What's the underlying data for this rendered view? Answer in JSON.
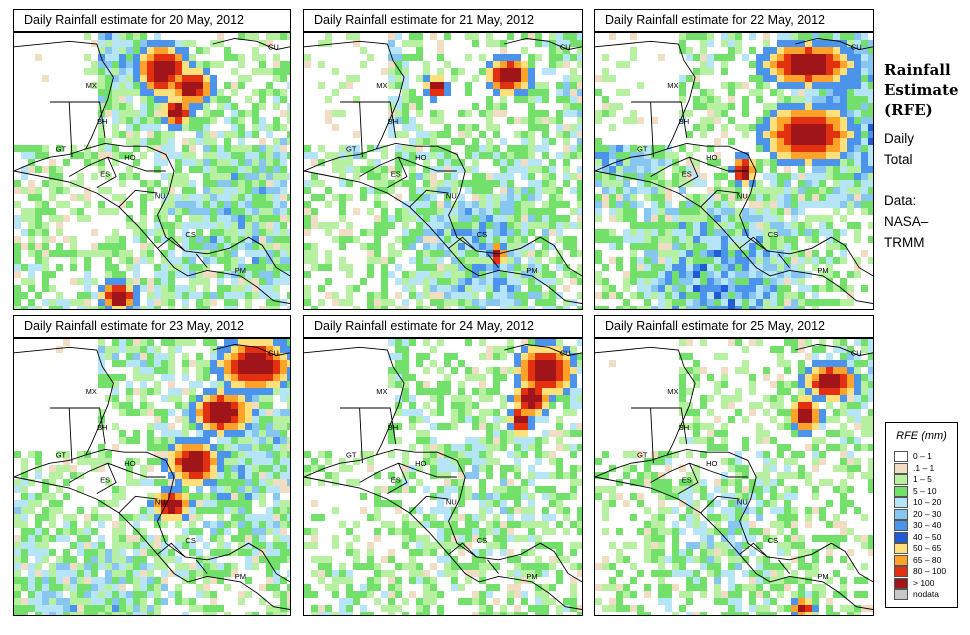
{
  "panels": [
    {
      "title": "Daily Rainfall estimate for  20 May, 2012",
      "intensity": 0.5,
      "heavy": [
        [
          0.52,
          0.12,
          0.07,
          0.07
        ],
        [
          0.62,
          0.18,
          0.06,
          0.05
        ],
        [
          0.57,
          0.27,
          0.04,
          0.04
        ],
        [
          0.36,
          0.93,
          0.05,
          0.04
        ]
      ]
    },
    {
      "title": "Daily Rainfall estimate for  21 May, 2012",
      "intensity": 0.5,
      "heavy": [
        [
          0.72,
          0.14,
          0.06,
          0.05
        ],
        [
          0.46,
          0.18,
          0.03,
          0.03
        ],
        [
          0.68,
          0.78,
          0.02,
          0.03
        ]
      ]
    },
    {
      "title": "Daily Rainfall estimate for  22 May, 2012",
      "intensity": 0.65,
      "heavy": [
        [
          0.75,
          0.1,
          0.12,
          0.06
        ],
        [
          0.75,
          0.35,
          0.12,
          0.08
        ],
        [
          0.52,
          0.48,
          0.03,
          0.04
        ]
      ]
    },
    {
      "title": "Daily Rainfall estimate for  23 May, 2012",
      "intensity": 0.5,
      "heavy": [
        [
          0.85,
          0.08,
          0.1,
          0.07
        ],
        [
          0.73,
          0.25,
          0.08,
          0.06
        ],
        [
          0.63,
          0.43,
          0.07,
          0.06
        ],
        [
          0.55,
          0.58,
          0.05,
          0.04
        ]
      ]
    },
    {
      "title": "Daily Rainfall estimate for  24 May, 2012",
      "intensity": 0.35,
      "heavy": [
        [
          0.85,
          0.1,
          0.08,
          0.07
        ],
        [
          0.8,
          0.2,
          0.05,
          0.05
        ],
        [
          0.76,
          0.28,
          0.03,
          0.04
        ]
      ]
    },
    {
      "title": "Daily Rainfall estimate for  25 May, 2012",
      "intensity": 0.35,
      "heavy": [
        [
          0.83,
          0.14,
          0.07,
          0.05
        ],
        [
          0.74,
          0.26,
          0.04,
          0.05
        ],
        [
          0.73,
          0.95,
          0.03,
          0.03
        ]
      ]
    }
  ],
  "country_labels": [
    "MX",
    "BH",
    "GT",
    "HO",
    "ES",
    "NU",
    "CS",
    "PM",
    "CU"
  ],
  "sidebar": {
    "title_lines": [
      "Rainfall",
      "Estimate",
      "(RFE)"
    ],
    "period_lines": [
      "Daily",
      "Total"
    ],
    "source_lines": [
      "Data:",
      "NASA–",
      "TRMM"
    ]
  },
  "legend": {
    "title": "RFE (mm)",
    "items": [
      {
        "label": "0 – 1",
        "color": "#ffffff"
      },
      {
        "label": ".1 – 1",
        "color": "#f1dcc4"
      },
      {
        "label": "1 – 5",
        "color": "#b7f0a0"
      },
      {
        "label": "5 – 10",
        "color": "#72e06a"
      },
      {
        "label": "10 – 20",
        "color": "#b7e5f8"
      },
      {
        "label": "20 – 30",
        "color": "#88c6f2"
      },
      {
        "label": "30 – 40",
        "color": "#4c93ec"
      },
      {
        "label": "40 – 50",
        "color": "#1f5cd6"
      },
      {
        "label": "50 – 65",
        "color": "#ffe07a"
      },
      {
        "label": "65 – 80",
        "color": "#ffa229"
      },
      {
        "label": "80 – 100",
        "color": "#e33010"
      },
      {
        "label": "> 100",
        "color": "#a0151a"
      },
      {
        "label": "nodata",
        "color": "#c8c8c8"
      }
    ]
  }
}
